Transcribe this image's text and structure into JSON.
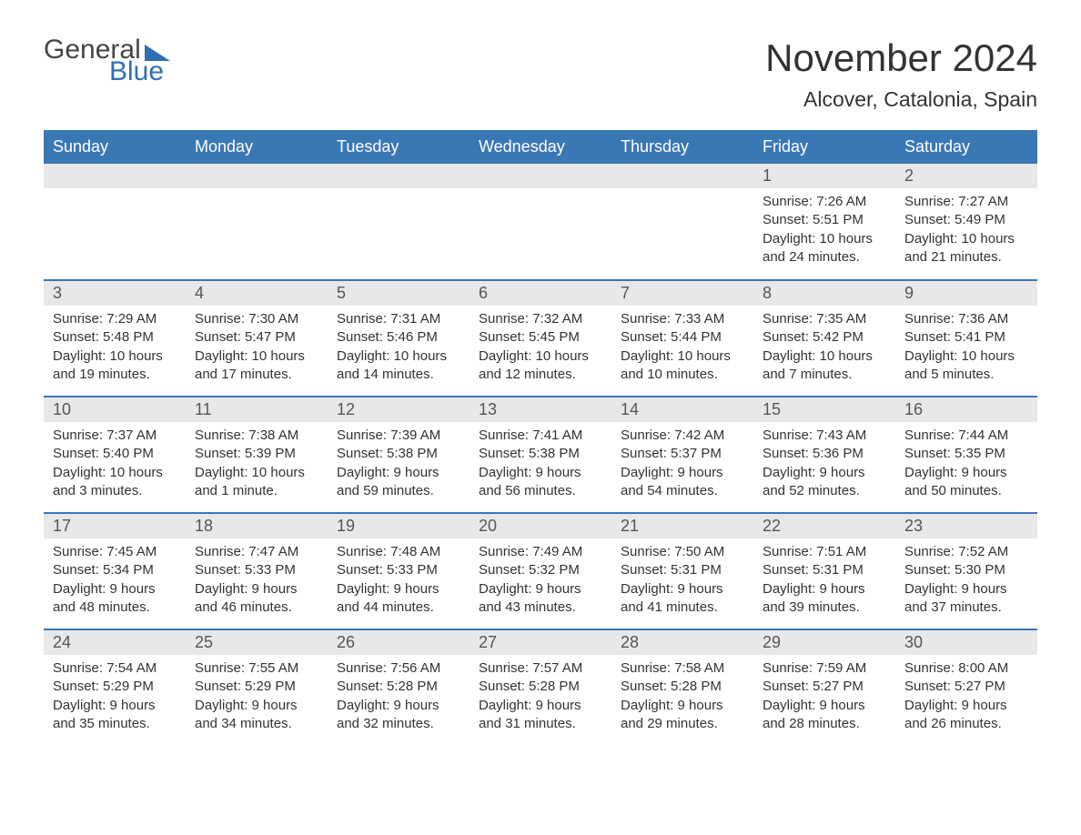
{
  "logo": {
    "word1": "General",
    "word2": "Blue"
  },
  "header": {
    "month_title": "November 2024",
    "location": "Alcover, Catalonia, Spain"
  },
  "colors": {
    "header_bg": "#3a77b5",
    "header_text": "#ffffff",
    "daynum_bg": "#e8e8e8",
    "row_border": "#3a77b5",
    "logo_blue": "#2f6fb2",
    "logo_gray": "#454545",
    "body_bg": "#ffffff",
    "body_text": "#333333"
  },
  "day_headers": [
    "Sunday",
    "Monday",
    "Tuesday",
    "Wednesday",
    "Thursday",
    "Friday",
    "Saturday"
  ],
  "weeks": [
    [
      {
        "blank": true
      },
      {
        "blank": true
      },
      {
        "blank": true
      },
      {
        "blank": true
      },
      {
        "blank": true
      },
      {
        "n": "1",
        "sunrise": "Sunrise: 7:26 AM",
        "sunset": "Sunset: 5:51 PM",
        "dl1": "Daylight: 10 hours",
        "dl2": "and 24 minutes."
      },
      {
        "n": "2",
        "sunrise": "Sunrise: 7:27 AM",
        "sunset": "Sunset: 5:49 PM",
        "dl1": "Daylight: 10 hours",
        "dl2": "and 21 minutes."
      }
    ],
    [
      {
        "n": "3",
        "sunrise": "Sunrise: 7:29 AM",
        "sunset": "Sunset: 5:48 PM",
        "dl1": "Daylight: 10 hours",
        "dl2": "and 19 minutes."
      },
      {
        "n": "4",
        "sunrise": "Sunrise: 7:30 AM",
        "sunset": "Sunset: 5:47 PM",
        "dl1": "Daylight: 10 hours",
        "dl2": "and 17 minutes."
      },
      {
        "n": "5",
        "sunrise": "Sunrise: 7:31 AM",
        "sunset": "Sunset: 5:46 PM",
        "dl1": "Daylight: 10 hours",
        "dl2": "and 14 minutes."
      },
      {
        "n": "6",
        "sunrise": "Sunrise: 7:32 AM",
        "sunset": "Sunset: 5:45 PM",
        "dl1": "Daylight: 10 hours",
        "dl2": "and 12 minutes."
      },
      {
        "n": "7",
        "sunrise": "Sunrise: 7:33 AM",
        "sunset": "Sunset: 5:44 PM",
        "dl1": "Daylight: 10 hours",
        "dl2": "and 10 minutes."
      },
      {
        "n": "8",
        "sunrise": "Sunrise: 7:35 AM",
        "sunset": "Sunset: 5:42 PM",
        "dl1": "Daylight: 10 hours",
        "dl2": "and 7 minutes."
      },
      {
        "n": "9",
        "sunrise": "Sunrise: 7:36 AM",
        "sunset": "Sunset: 5:41 PM",
        "dl1": "Daylight: 10 hours",
        "dl2": "and 5 minutes."
      }
    ],
    [
      {
        "n": "10",
        "sunrise": "Sunrise: 7:37 AM",
        "sunset": "Sunset: 5:40 PM",
        "dl1": "Daylight: 10 hours",
        "dl2": "and 3 minutes."
      },
      {
        "n": "11",
        "sunrise": "Sunrise: 7:38 AM",
        "sunset": "Sunset: 5:39 PM",
        "dl1": "Daylight: 10 hours",
        "dl2": "and 1 minute."
      },
      {
        "n": "12",
        "sunrise": "Sunrise: 7:39 AM",
        "sunset": "Sunset: 5:38 PM",
        "dl1": "Daylight: 9 hours",
        "dl2": "and 59 minutes."
      },
      {
        "n": "13",
        "sunrise": "Sunrise: 7:41 AM",
        "sunset": "Sunset: 5:38 PM",
        "dl1": "Daylight: 9 hours",
        "dl2": "and 56 minutes."
      },
      {
        "n": "14",
        "sunrise": "Sunrise: 7:42 AM",
        "sunset": "Sunset: 5:37 PM",
        "dl1": "Daylight: 9 hours",
        "dl2": "and 54 minutes."
      },
      {
        "n": "15",
        "sunrise": "Sunrise: 7:43 AM",
        "sunset": "Sunset: 5:36 PM",
        "dl1": "Daylight: 9 hours",
        "dl2": "and 52 minutes."
      },
      {
        "n": "16",
        "sunrise": "Sunrise: 7:44 AM",
        "sunset": "Sunset: 5:35 PM",
        "dl1": "Daylight: 9 hours",
        "dl2": "and 50 minutes."
      }
    ],
    [
      {
        "n": "17",
        "sunrise": "Sunrise: 7:45 AM",
        "sunset": "Sunset: 5:34 PM",
        "dl1": "Daylight: 9 hours",
        "dl2": "and 48 minutes."
      },
      {
        "n": "18",
        "sunrise": "Sunrise: 7:47 AM",
        "sunset": "Sunset: 5:33 PM",
        "dl1": "Daylight: 9 hours",
        "dl2": "and 46 minutes."
      },
      {
        "n": "19",
        "sunrise": "Sunrise: 7:48 AM",
        "sunset": "Sunset: 5:33 PM",
        "dl1": "Daylight: 9 hours",
        "dl2": "and 44 minutes."
      },
      {
        "n": "20",
        "sunrise": "Sunrise: 7:49 AM",
        "sunset": "Sunset: 5:32 PM",
        "dl1": "Daylight: 9 hours",
        "dl2": "and 43 minutes."
      },
      {
        "n": "21",
        "sunrise": "Sunrise: 7:50 AM",
        "sunset": "Sunset: 5:31 PM",
        "dl1": "Daylight: 9 hours",
        "dl2": "and 41 minutes."
      },
      {
        "n": "22",
        "sunrise": "Sunrise: 7:51 AM",
        "sunset": "Sunset: 5:31 PM",
        "dl1": "Daylight: 9 hours",
        "dl2": "and 39 minutes."
      },
      {
        "n": "23",
        "sunrise": "Sunrise: 7:52 AM",
        "sunset": "Sunset: 5:30 PM",
        "dl1": "Daylight: 9 hours",
        "dl2": "and 37 minutes."
      }
    ],
    [
      {
        "n": "24",
        "sunrise": "Sunrise: 7:54 AM",
        "sunset": "Sunset: 5:29 PM",
        "dl1": "Daylight: 9 hours",
        "dl2": "and 35 minutes."
      },
      {
        "n": "25",
        "sunrise": "Sunrise: 7:55 AM",
        "sunset": "Sunset: 5:29 PM",
        "dl1": "Daylight: 9 hours",
        "dl2": "and 34 minutes."
      },
      {
        "n": "26",
        "sunrise": "Sunrise: 7:56 AM",
        "sunset": "Sunset: 5:28 PM",
        "dl1": "Daylight: 9 hours",
        "dl2": "and 32 minutes."
      },
      {
        "n": "27",
        "sunrise": "Sunrise: 7:57 AM",
        "sunset": "Sunset: 5:28 PM",
        "dl1": "Daylight: 9 hours",
        "dl2": "and 31 minutes."
      },
      {
        "n": "28",
        "sunrise": "Sunrise: 7:58 AM",
        "sunset": "Sunset: 5:28 PM",
        "dl1": "Daylight: 9 hours",
        "dl2": "and 29 minutes."
      },
      {
        "n": "29",
        "sunrise": "Sunrise: 7:59 AM",
        "sunset": "Sunset: 5:27 PM",
        "dl1": "Daylight: 9 hours",
        "dl2": "and 28 minutes."
      },
      {
        "n": "30",
        "sunrise": "Sunrise: 8:00 AM",
        "sunset": "Sunset: 5:27 PM",
        "dl1": "Daylight: 9 hours",
        "dl2": "and 26 minutes."
      }
    ]
  ]
}
